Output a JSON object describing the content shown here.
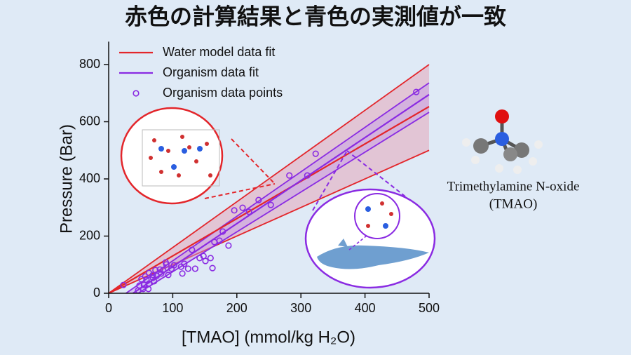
{
  "title": "赤色の計算結果と青色の実測値が一致",
  "chart_data": {
    "type": "line",
    "x_label": "[TMAO] (mmol/kg H₂O)",
    "y_label": "Pressure (Bar)",
    "xlim": [
      0,
      500
    ],
    "xticks": [
      0,
      100,
      200,
      300,
      400,
      500
    ],
    "ylim": [
      0,
      880
    ],
    "yticks": [
      0,
      200,
      400,
      600,
      800
    ],
    "legend": "top-left",
    "series": [
      {
        "name": "Water model data fit",
        "type": "line",
        "color": "#e3262b",
        "x": [
          0,
          500
        ],
        "values": [
          0,
          653
        ],
        "band": {
          "color": "#e79aac",
          "upper": {
            "x": [
              0,
              500
            ],
            "values": [
              0,
              800
            ]
          },
          "lower": {
            "x": [
              0,
              500
            ],
            "values": [
              0,
              500
            ]
          }
        }
      },
      {
        "name": "Organism data fit",
        "type": "line",
        "color": "#8a2be2",
        "x": [
          38,
          500
        ],
        "values": [
          0,
          695
        ],
        "band": {
          "color": "#c39be8",
          "upper": {
            "x": [
              27,
              500
            ],
            "values": [
              0,
              736
            ]
          },
          "lower": {
            "x": [
              46,
              500
            ],
            "values": [
              0,
              633
            ]
          }
        }
      },
      {
        "name": "Organism data points",
        "type": "scatter",
        "color": "#8a2be2",
        "x": [
          23,
          480,
          323,
          282,
          310,
          234,
          253,
          196,
          209,
          219,
          187,
          173,
          178,
          165,
          162,
          159,
          151,
          142,
          148,
          135,
          124,
          115,
          113,
          98,
          90,
          85,
          80,
          75,
          69,
          63,
          57,
          51,
          48,
          46,
          55,
          63,
          69,
          73,
          82,
          93,
          102,
          118,
          59,
          71,
          62,
          54,
          89,
          130
        ],
        "values": [
          29,
          704,
          488,
          412,
          412,
          326,
          309,
          290,
          299,
          285,
          167,
          184,
          216,
          179,
          88,
          123,
          113,
          123,
          130,
          86,
          86,
          69,
          93,
          86,
          101,
          81,
          83,
          61,
          54,
          71,
          59,
          49,
          27,
          10,
          29,
          34,
          64,
          81,
          69,
          64,
          98,
          103,
          47,
          42,
          15,
          15,
          108,
          152
        ]
      }
    ],
    "molecule_label": [
      "Trimethylamine N-oxide",
      "(TMAO)"
    ]
  }
}
